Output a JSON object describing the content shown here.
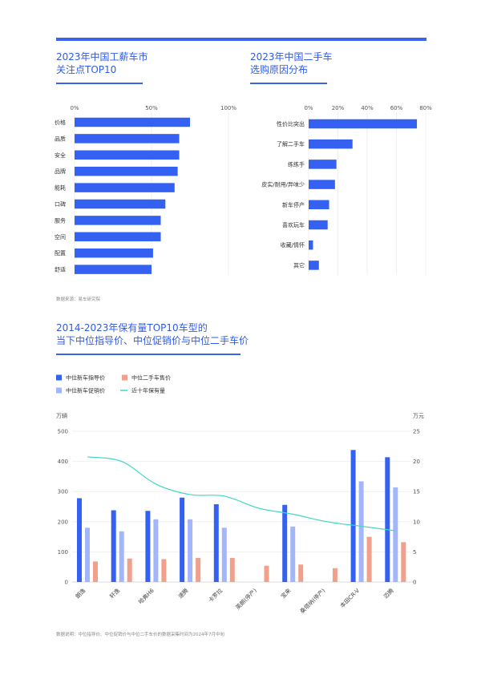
{
  "chart_data": [
    {
      "type": "bar",
      "orientation": "horizontal",
      "title": "2023年中国工薪车市\n关注点TOP10",
      "categories": [
        "价格",
        "品质",
        "安全",
        "品牌",
        "能耗",
        "口碑",
        "服务",
        "空间",
        "配置",
        "舒适"
      ],
      "values": [
        75,
        68,
        68,
        67,
        65,
        59,
        56,
        56,
        51,
        50
      ],
      "xlim": [
        0,
        100
      ],
      "x_ticks": [
        "0%",
        "50%",
        "100%"
      ],
      "color": "#3561f2",
      "grid": true
    },
    {
      "type": "bar",
      "orientation": "horizontal",
      "title": "2023年中国二手车\n选购原因分布",
      "categories": [
        "性价比突出",
        "了解二手车",
        "练练手",
        "皮实/耐用/异味少",
        "新车停产",
        "喜欢玩车",
        "收藏/情怀",
        "其它"
      ],
      "values": [
        74,
        30,
        19,
        18,
        14,
        13,
        3,
        7
      ],
      "xlim": [
        0,
        80
      ],
      "x_ticks": [
        "0%",
        "20%",
        "40%",
        "60%",
        "80%"
      ],
      "color": "#3561f2",
      "grid": true
    },
    {
      "type": "bar",
      "title": "2014-2023年保有量TOP10车型的\n当下中位指导价、中位促销价与中位二手车价",
      "categories": [
        "朗逸",
        "轩逸",
        "哈弗H6",
        "速腾",
        "卡罗拉",
        "英朗(停产)",
        "宝来",
        "桑塔纳(停产)",
        "本田CR-V",
        "迈腾"
      ],
      "series": [
        {
          "name": "中位新车指导价",
          "axis": "right",
          "color": "#3561f2",
          "values": [
            13.9,
            11.9,
            11.8,
            14.0,
            12.9,
            null,
            12.8,
            null,
            21.9,
            20.7
          ]
        },
        {
          "name": "中位新车促销价",
          "axis": "right",
          "color": "#a3b6fa",
          "values": [
            9.0,
            8.4,
            10.4,
            10.4,
            9.0,
            null,
            9.2,
            null,
            16.7,
            15.7
          ]
        },
        {
          "name": "中位二手车售价",
          "axis": "right",
          "color": "#f0a08b",
          "values": [
            3.4,
            3.9,
            3.8,
            4.0,
            4.0,
            2.7,
            2.9,
            2.3,
            7.5,
            6.6
          ]
        },
        {
          "name": "近十年保有量",
          "axis": "left",
          "type": "line",
          "color": "#3ed8c4",
          "values": [
            415,
            400,
            325,
            290,
            285,
            245,
            225,
            200,
            185,
            170
          ]
        }
      ],
      "y_left": {
        "label": "万辆",
        "range": [
          0,
          500
        ],
        "ticks": [
          "0",
          "100",
          "200",
          "300",
          "400",
          "500"
        ]
      },
      "y_right": {
        "label": "万元",
        "range": [
          0,
          25
        ],
        "ticks": [
          "0",
          "5",
          "10",
          "15",
          "20",
          "25"
        ]
      },
      "legend_placement": "top-left"
    }
  ],
  "sources": {
    "top": "数据来源：易车研究院",
    "bottom": "数据说明：中位指导价、中位促销价与中位二手车价的数据采集时间为2024年7月中旬"
  }
}
